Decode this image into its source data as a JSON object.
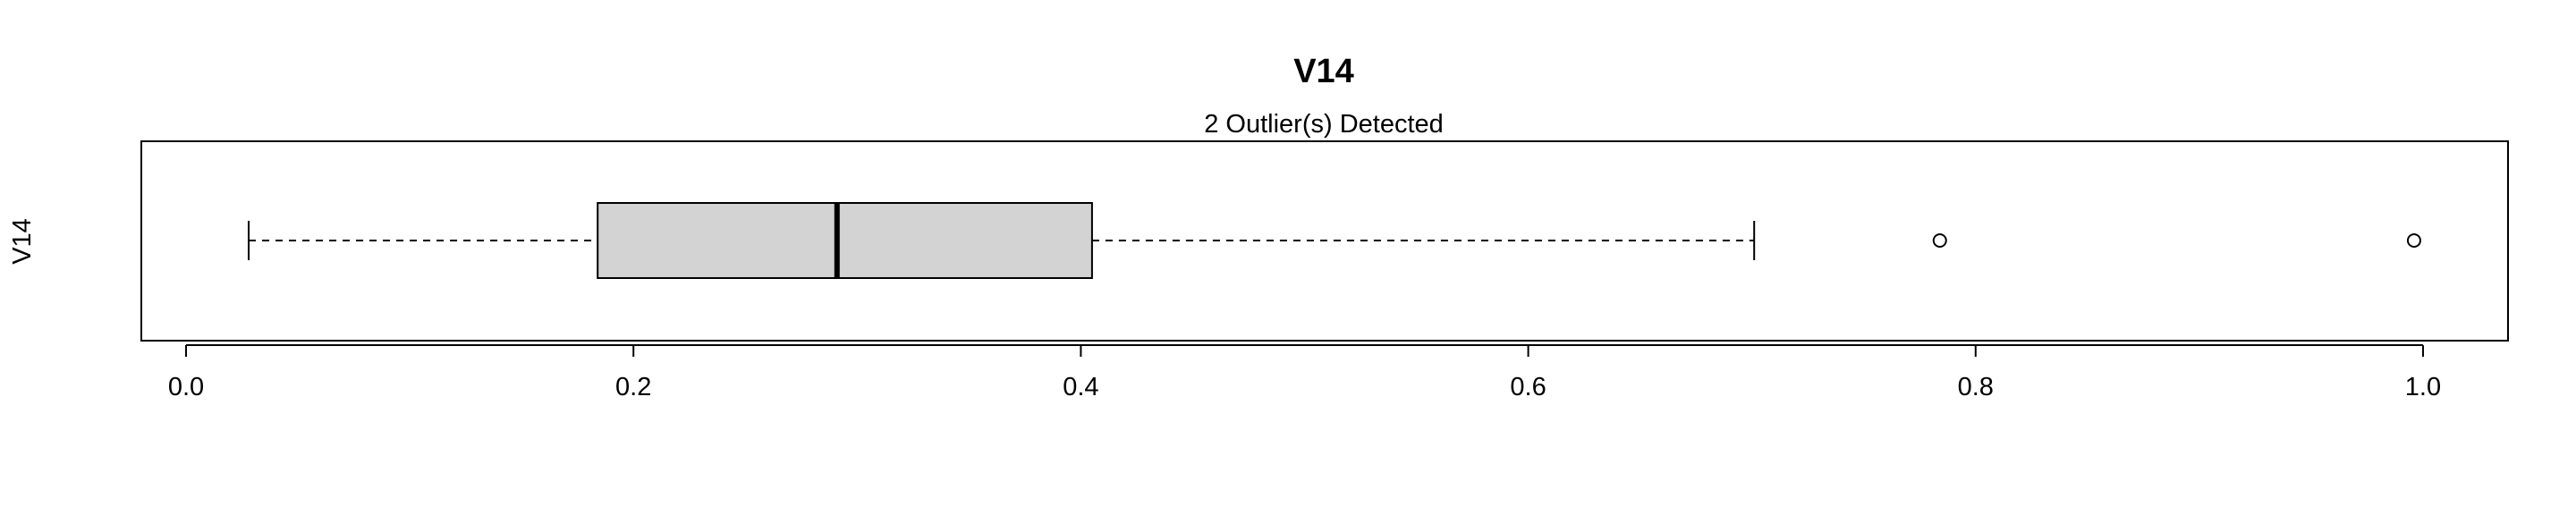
{
  "chart_data": {
    "type": "boxplot",
    "orientation": "horizontal",
    "title": "V14",
    "subtitle": "2 Outlier(s) Detected",
    "xlabel": "",
    "ylabel": "V14",
    "xlim": [
      -0.02,
      1.038
    ],
    "xticks": [
      0.0,
      0.2,
      0.4,
      0.6,
      0.8,
      1.0
    ],
    "xtick_labels": [
      "0.0",
      "0.2",
      "0.4",
      "0.6",
      "0.8",
      "1.0"
    ],
    "series": [
      {
        "whisker_low": 0.028,
        "q1": 0.184,
        "median": 0.291,
        "q3": 0.405,
        "whisker_high": 0.701,
        "outliers": [
          0.784,
          0.996
        ]
      }
    ],
    "grid": false,
    "box_fill": "#d3d3d3",
    "line_color": "#000000"
  }
}
